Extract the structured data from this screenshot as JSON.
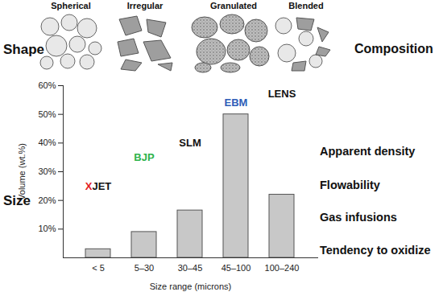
{
  "chart_data": {
    "type": "bar",
    "categories": [
      "< 5",
      "5–30",
      "30–45",
      "45–100",
      "100–240"
    ],
    "values": [
      3,
      9,
      16.5,
      50,
      22
    ],
    "color": "#c8c8c8",
    "ylim": [
      0,
      60
    ],
    "yticks": [
      {
        "value": 10,
        "label": "10%"
      },
      {
        "value": 20,
        "label": "20%"
      },
      {
        "value": 30,
        "label": "30%"
      },
      {
        "value": 40,
        "label": "40%"
      },
      {
        "value": 50,
        "label": "50%"
      },
      {
        "value": 60,
        "label": "60%"
      }
    ],
    "xlabel": "Size range (microns)",
    "ylabel": "Volume (wt.%)",
    "grid": false,
    "annotations": [
      {
        "category": "< 5",
        "y": 25,
        "parts": [
          {
            "text": "X",
            "color": "#e31e24"
          },
          {
            "text": "JET",
            "color": "#111111"
          }
        ]
      },
      {
        "category": "5–30",
        "y": 35,
        "parts": [
          {
            "text": "BJP",
            "color": "#2db34a"
          }
        ]
      },
      {
        "category": "30–45",
        "y": 40,
        "parts": [
          {
            "text": "SLM",
            "color": "#111111"
          }
        ]
      },
      {
        "category": "45–100",
        "y": 54,
        "parts": [
          {
            "text": "EBM",
            "color": "#2e5db8"
          }
        ]
      },
      {
        "category": "100–240",
        "y": 57,
        "parts": [
          {
            "text": "LENS",
            "color": "#111111"
          }
        ]
      }
    ]
  },
  "diagram": {
    "shape": {
      "label": "Shape",
      "kinds": [
        "Spherical",
        "Irregular",
        "Granulated",
        "Blended"
      ]
    },
    "composition": "Composition",
    "size": "Size",
    "properties": [
      "Apparent density",
      "Flowability",
      "Gas infusions",
      "Tendency to oxidize"
    ]
  }
}
